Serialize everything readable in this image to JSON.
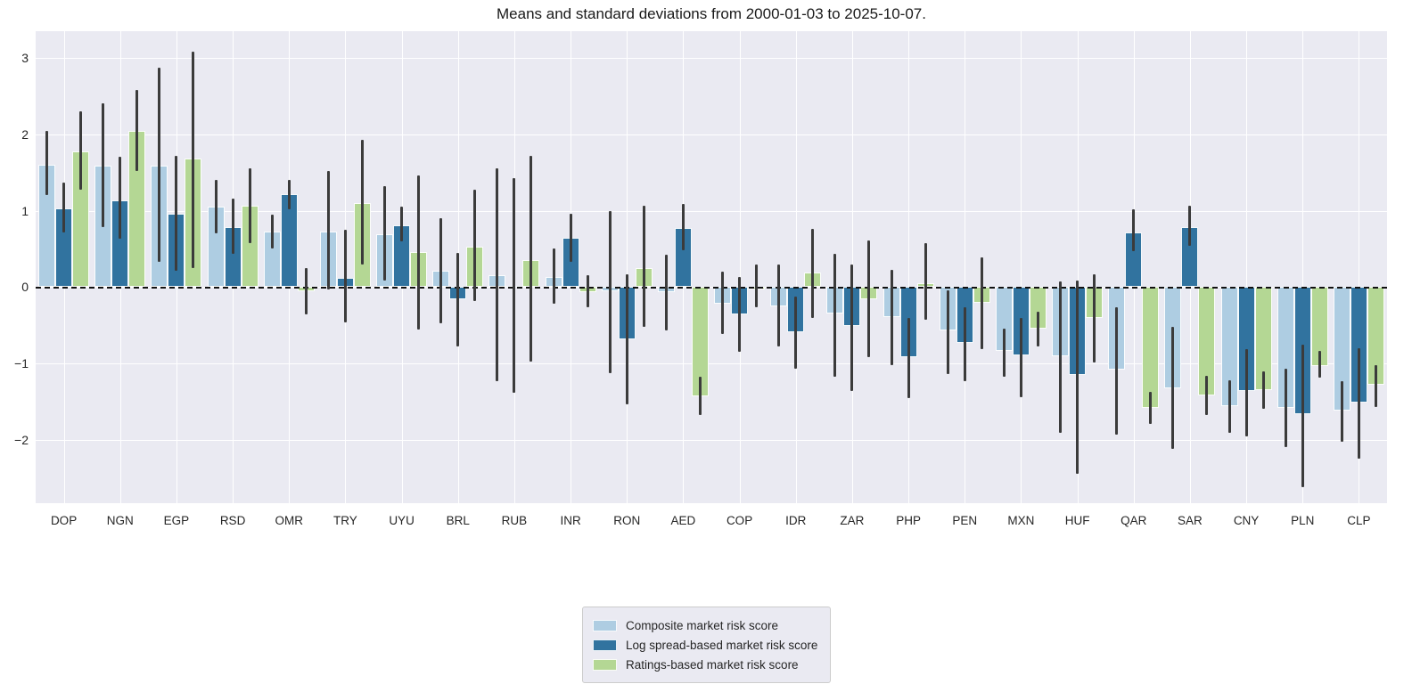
{
  "chart_data": {
    "type": "bar",
    "title": "Means and standard deviations from 2000-01-03 to 2025-10-07.",
    "xlabel": "",
    "ylabel": "",
    "grid": true,
    "zero_line_dashed": true,
    "legend_position": "lower center outside plot",
    "ylim": [
      -2.83,
      3.35
    ],
    "yticks": [
      3,
      2,
      1,
      0,
      -1,
      -2
    ],
    "ytick_labels": [
      "3",
      "2",
      "1",
      "0",
      "−1",
      "−2"
    ],
    "categories": [
      "DOP",
      "NGN",
      "EGP",
      "RSD",
      "OMR",
      "TRY",
      "UYU",
      "BRL",
      "RUB",
      "INR",
      "RON",
      "AED",
      "COP",
      "IDR",
      "ZAR",
      "PHP",
      "PEN",
      "MXN",
      "HUF",
      "QAR",
      "SAR",
      "CNY",
      "PLN",
      "CLP"
    ],
    "series": [
      {
        "name": "Composite market risk score",
        "color": "#aecde2",
        "means": [
          1.6,
          1.59,
          1.59,
          1.05,
          0.73,
          0.73,
          0.69,
          0.21,
          0.15,
          0.13,
          -0.06,
          -0.07,
          -0.22,
          -0.25,
          -0.35,
          -0.39,
          -0.57,
          -0.84,
          -0.91,
          -1.08,
          -1.33,
          -1.56,
          -1.58,
          -1.62
        ],
        "err_lo": [
          1.2,
          0.79,
          0.33,
          0.7,
          0.51,
          -0.03,
          0.08,
          -0.47,
          -1.23,
          -0.22,
          -1.13,
          -0.57,
          -0.61,
          -0.78,
          -1.17,
          -1.02,
          -1.14,
          -1.17,
          -1.91,
          -1.93,
          -2.12,
          -1.91,
          -2.09,
          -2.03
        ],
        "err_hi": [
          2.04,
          2.4,
          2.87,
          1.4,
          0.95,
          1.52,
          1.32,
          0.9,
          1.56,
          0.5,
          1.0,
          0.42,
          0.2,
          0.29,
          0.44,
          0.22,
          -0.04,
          -0.55,
          0.07,
          -0.26,
          -0.52,
          -1.22,
          -1.07,
          -1.23
        ]
      },
      {
        "name": "Log spread-based market risk score",
        "color": "#31739f",
        "means": [
          1.03,
          1.14,
          0.96,
          0.78,
          1.22,
          0.12,
          0.81,
          -0.16,
          0.02,
          0.64,
          -0.68,
          0.77,
          -0.36,
          -0.59,
          -0.51,
          -0.92,
          -0.73,
          -0.9,
          -1.15,
          0.72,
          0.79,
          -1.36,
          -1.66,
          -1.51
        ],
        "err_lo": [
          0.71,
          0.63,
          0.21,
          0.43,
          1.02,
          -0.46,
          0.6,
          -0.78,
          -1.38,
          0.33,
          -1.54,
          0.48,
          -0.85,
          -1.07,
          -1.36,
          -1.45,
          -1.23,
          -1.44,
          -2.44,
          0.47,
          0.54,
          -1.95,
          -2.62,
          -2.25
        ],
        "err_hi": [
          1.37,
          1.71,
          1.72,
          1.16,
          1.4,
          0.75,
          1.05,
          0.45,
          1.43,
          0.96,
          0.17,
          1.09,
          0.13,
          -0.13,
          0.29,
          -0.4,
          -0.26,
          -0.4,
          0.08,
          1.02,
          1.06,
          -0.81,
          -0.76,
          -0.8
        ]
      },
      {
        "name": "Ratings-based market risk score",
        "color": "#b4d794",
        "means": [
          1.78,
          2.04,
          1.68,
          1.06,
          -0.05,
          1.1,
          0.46,
          0.53,
          0.35,
          -0.07,
          0.25,
          -1.43,
          -0.03,
          0.19,
          -0.16,
          0.05,
          -0.21,
          -0.55,
          -0.4,
          -1.58,
          -1.42,
          -1.35,
          -1.03,
          -1.28
        ],
        "err_lo": [
          1.27,
          1.52,
          0.25,
          0.58,
          -0.36,
          0.29,
          -0.56,
          -0.18,
          -0.98,
          -0.26,
          -0.52,
          -1.67,
          -0.27,
          -0.4,
          -0.92,
          -0.43,
          -0.81,
          -0.78,
          -0.99,
          -1.79,
          -1.68,
          -1.59,
          -1.19,
          -1.57
        ],
        "err_hi": [
          2.3,
          2.58,
          3.08,
          1.55,
          0.25,
          1.93,
          1.46,
          1.28,
          1.72,
          0.16,
          1.07,
          -1.17,
          0.3,
          0.76,
          0.61,
          0.57,
          0.39,
          -0.32,
          0.17,
          -1.37,
          -1.16,
          -1.1,
          -0.84,
          -1.02
        ]
      }
    ],
    "colors": {
      "plot_background": "#eaeaf2",
      "figure_background": "#ffffff",
      "gridline": "#ffffff",
      "error_bar": "#3b3b3b",
      "zero_line": "#111111",
      "tick_text": "#262626"
    }
  }
}
